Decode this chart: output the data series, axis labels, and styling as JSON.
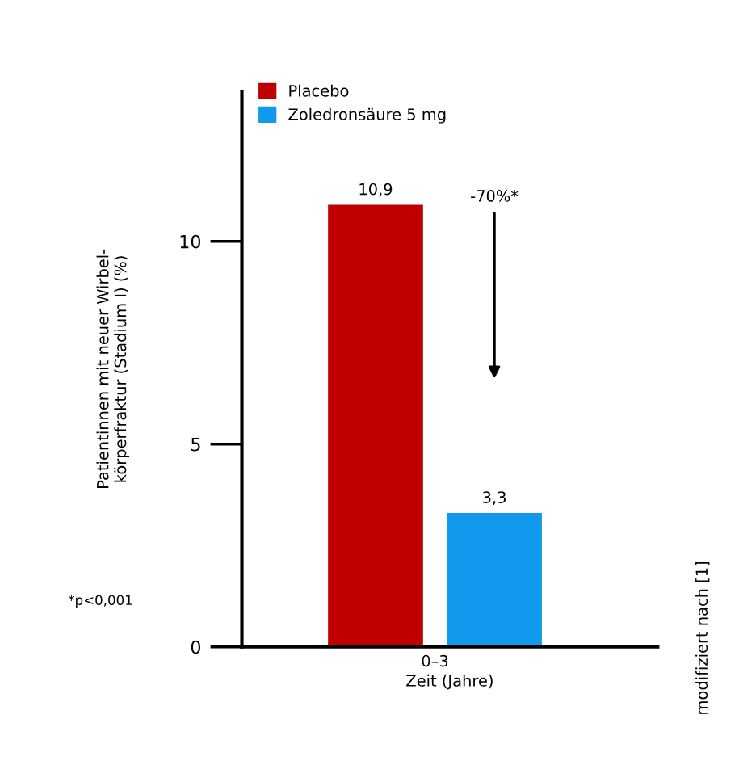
{
  "chart_data": {
    "type": "bar",
    "ylabel": "Patientinnen mit neuer Wirbel-\nkörperfraktur (Stadium I) (%)",
    "xlabel": "Zeit (Jahre)",
    "categories": [
      "0–3"
    ],
    "series": [
      {
        "name": "Placebo",
        "color": "#c00000",
        "values": [
          10.9
        ],
        "value_labels": [
          "10,9"
        ]
      },
      {
        "name": "Zoledronsäure 5 mg",
        "color": "#1199ee",
        "values": [
          3.3
        ],
        "value_labels": [
          "3,3"
        ]
      }
    ],
    "ylim": [
      0,
      13.7
    ],
    "yticks": [
      0,
      5,
      10
    ],
    "grid": false,
    "legend": "top left",
    "annotations": [
      "-70%*",
      "*p<0,001",
      "modifiziert nach [1]"
    ]
  }
}
